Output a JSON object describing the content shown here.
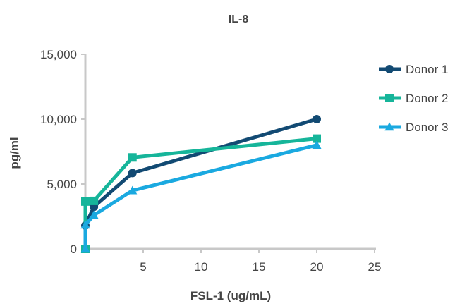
{
  "chart_data": {
    "type": "line",
    "title": "IL-8",
    "xlabel": "FSL-1 (ug/mL)",
    "ylabel": "pg/ml",
    "xlim": [
      0,
      25
    ],
    "ylim": [
      0,
      15000
    ],
    "x_ticks": [
      5,
      10,
      15,
      20,
      25
    ],
    "x_tick_labels": [
      "5",
      "10",
      "15",
      "20",
      "25"
    ],
    "y_ticks": [
      0,
      5000,
      10000,
      15000
    ],
    "y_tick_labels": [
      "0",
      "5,000",
      "10,000",
      "15,000"
    ],
    "grid": false,
    "legend_position": "right",
    "series": [
      {
        "name": "Donor 1",
        "color": "#124a73",
        "marker": "circle",
        "x": [
          0,
          0,
          0.74,
          4.07,
          20
        ],
        "y": [
          0,
          1800,
          3250,
          5850,
          10000
        ]
      },
      {
        "name": "Donor 2",
        "color": "#16b59a",
        "marker": "square",
        "x": [
          0,
          0,
          0.74,
          4.07,
          20
        ],
        "y": [
          0,
          3650,
          3700,
          7050,
          8500
        ]
      },
      {
        "name": "Donor 3",
        "color": "#1aa9e0",
        "marker": "triangle",
        "x": [
          0,
          0,
          0.74,
          4.07,
          20
        ],
        "y": [
          0,
          1850,
          2600,
          4500,
          8000
        ]
      }
    ]
  }
}
